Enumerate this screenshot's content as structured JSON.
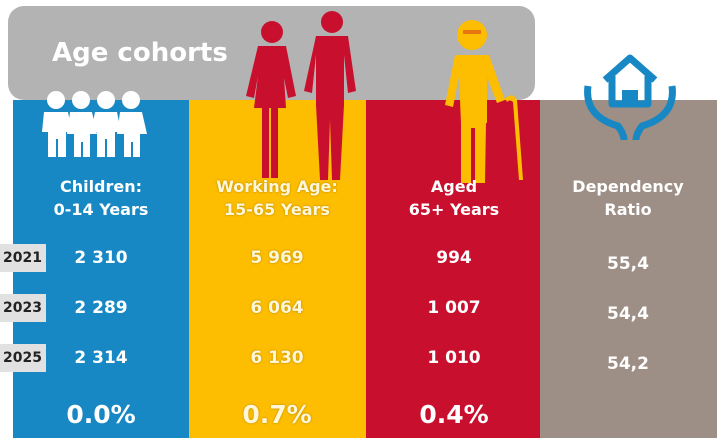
{
  "title": "Age cohorts",
  "years": [
    "2021",
    "2023",
    "2025"
  ],
  "columns": [
    {
      "line1": "Children:",
      "line2": "0-14 Years",
      "values": [
        "2 310",
        "2 289",
        "2 314"
      ],
      "change": "0.0%"
    },
    {
      "line1": "Working Age:",
      "line2": "15-65 Years",
      "values": [
        "5 969",
        "6 064",
        "6 130"
      ],
      "change": "0.7%"
    },
    {
      "line1": "Aged",
      "line2": "65+ Years",
      "values": [
        "994",
        "1 007",
        "1 010"
      ],
      "change": "0.4%"
    },
    {
      "line1": "Dependency",
      "line2": "Ratio",
      "values": [
        "55,4",
        "54,4",
        "54,2"
      ]
    }
  ]
}
